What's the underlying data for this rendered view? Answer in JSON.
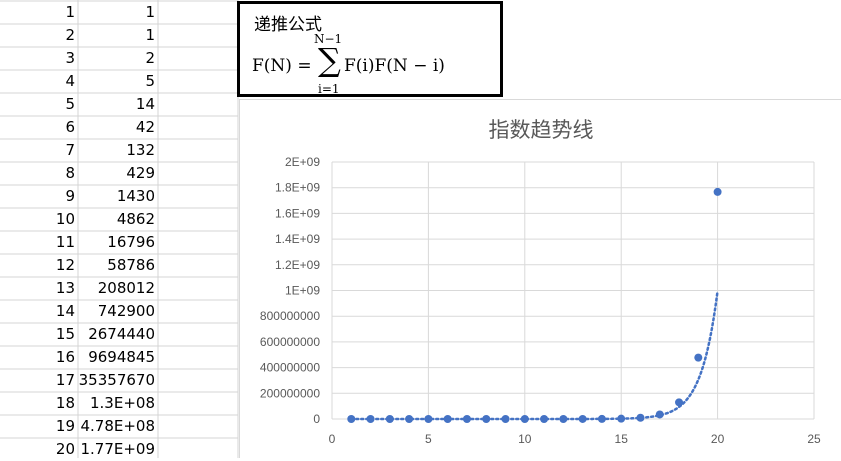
{
  "sheet": {
    "rows": [
      {
        "n": "1",
        "value": "1"
      },
      {
        "n": "2",
        "value": "1"
      },
      {
        "n": "3",
        "value": "2"
      },
      {
        "n": "4",
        "value": "5"
      },
      {
        "n": "5",
        "value": "14"
      },
      {
        "n": "6",
        "value": "42"
      },
      {
        "n": "7",
        "value": "132"
      },
      {
        "n": "8",
        "value": "429"
      },
      {
        "n": "9",
        "value": "1430"
      },
      {
        "n": "10",
        "value": "4862"
      },
      {
        "n": "11",
        "value": "16796"
      },
      {
        "n": "12",
        "value": "58786"
      },
      {
        "n": "13",
        "value": "208012"
      },
      {
        "n": "14",
        "value": "742900"
      },
      {
        "n": "15",
        "value": "2674440"
      },
      {
        "n": "16",
        "value": "9694845"
      },
      {
        "n": "17",
        "value": "35357670"
      },
      {
        "n": "18",
        "value": "1.3E+08"
      },
      {
        "n": "19",
        "value": "4.78E+08"
      },
      {
        "n": "20",
        "value": "1.77E+09"
      }
    ]
  },
  "formula": {
    "title": "递推公式",
    "lhs": "F(N) =",
    "upper": "N−1",
    "sigma": "∑",
    "lower": "i=1",
    "rhs": "F(i)F(N − i)"
  },
  "colors": {
    "marker": "#4472C4",
    "trendline": "#4472C4",
    "gridline": "#d9d9d9",
    "axis_text": "#595959"
  },
  "chart_data": {
    "type": "scatter",
    "title": "指数趋势线",
    "xlabel": "",
    "ylabel": "",
    "xlim": [
      0,
      25
    ],
    "ylim": [
      0,
      2000000000
    ],
    "x_ticks": [
      "0",
      "5",
      "10",
      "15",
      "20",
      "25"
    ],
    "y_ticks": [
      "0",
      "200000000",
      "400000000",
      "600000000",
      "800000000",
      "1E+09",
      "1.2E+09",
      "1.4E+09",
      "1.6E+09",
      "1.8E+09",
      "2E+09"
    ],
    "grid": true,
    "trendline": "exponential",
    "x": [
      1,
      2,
      3,
      4,
      5,
      6,
      7,
      8,
      9,
      10,
      11,
      12,
      13,
      14,
      15,
      16,
      17,
      18,
      19,
      20
    ],
    "y": [
      1,
      1,
      2,
      5,
      14,
      42,
      132,
      429,
      1430,
      4862,
      16796,
      58786,
      208012,
      742900,
      2674440,
      9694845,
      35357670,
      129644790,
      477638700,
      1767263190
    ]
  }
}
